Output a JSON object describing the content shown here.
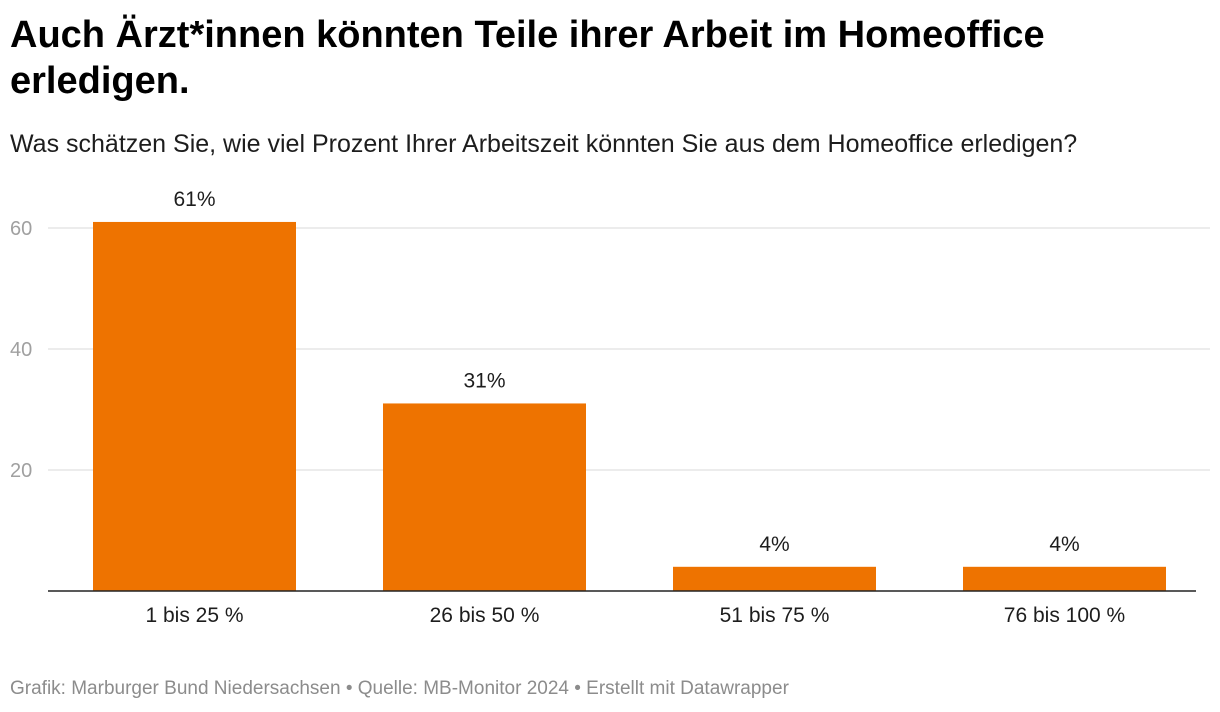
{
  "chart_data": {
    "type": "bar",
    "title": "Auch Ärzt*innen könnten Teile ihrer Arbeit im Homeoffice erledigen.",
    "subtitle": "Was schätzen Sie, wie viel Prozent Ihrer Arbeitszeit könnten Sie aus dem Homeoffice erledigen?",
    "categories": [
      "1 bis 25 %",
      "26 bis 50 %",
      "51 bis 75 %",
      "76 bis 100 %"
    ],
    "values": [
      61,
      31,
      4,
      4
    ],
    "data_labels": [
      "61%",
      "31%",
      "4%",
      "4%"
    ],
    "yticks": [
      20,
      40,
      60
    ],
    "ylim": [
      0,
      60
    ],
    "grid": true,
    "legend": "none",
    "bar_color": "#ee7300"
  },
  "footer": {
    "text": "Grafik: Marburger Bund Niedersachsen • Quelle: MB-Monitor 2024 • Erstellt mit Datawrapper"
  }
}
